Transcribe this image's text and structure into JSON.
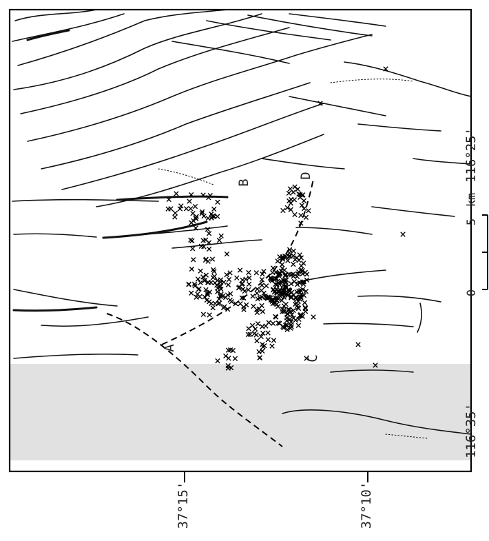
{
  "map": {
    "longitude_labels": [
      "116°25'",
      "116°35'"
    ],
    "latitude_labels": [
      "37°15'",
      "37°10'"
    ],
    "scale_bar": {
      "labels": [
        "0",
        "5",
        "km"
      ]
    },
    "profile_labels": [
      "A",
      "B",
      "C",
      "D"
    ]
  }
}
